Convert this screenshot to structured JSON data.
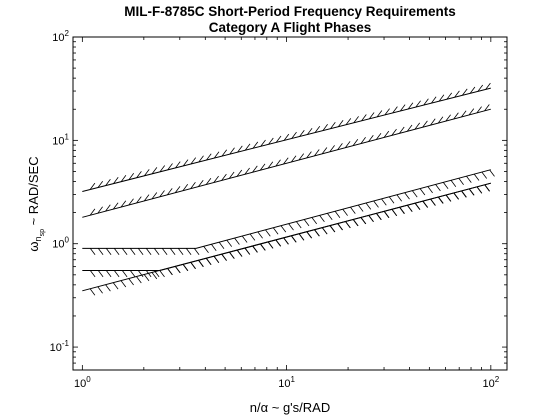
{
  "chart_data": {
    "type": "line",
    "title_lines": [
      "MIL-F-8785C Short-Period Frequency Requirements",
      "Category A Flight Phases"
    ],
    "xlabel": "n/α ~ g's/RAD",
    "ylabel": "ωn_sp ~ RAD/SEC",
    "ylabel_parts": {
      "omega": "ω",
      "sub_n": "n",
      "sub_sp": "sp",
      "rest": " ~ RAD/SEC"
    },
    "xscale": "log",
    "yscale": "log",
    "xlim": [
      0.9,
      120
    ],
    "ylim": [
      0.06,
      100
    ],
    "grid": false,
    "x_ticks": [
      {
        "base": "10",
        "exp": "0",
        "value": 1
      },
      {
        "base": "10",
        "exp": "1",
        "value": 10
      },
      {
        "base": "10",
        "exp": "2",
        "value": 100
      }
    ],
    "y_ticks": [
      {
        "base": "10",
        "exp": "-1",
        "value": 0.1
      },
      {
        "base": "10",
        "exp": "0",
        "value": 1
      },
      {
        "base": "10",
        "exp": "1",
        "value": 10
      },
      {
        "base": "10",
        "exp": "2",
        "value": 100
      }
    ],
    "series": [
      {
        "x": [
          1,
          100
        ],
        "y": [
          3.2,
          32
        ],
        "hatch": "above"
      },
      {
        "x": [
          1,
          100
        ],
        "y": [
          1.8,
          20
        ],
        "hatch": "above"
      },
      {
        "x": [
          1,
          3.6,
          100
        ],
        "y": [
          0.9,
          0.9,
          5.2
        ],
        "hatch": "below"
      },
      {
        "x": [
          1,
          2.4,
          100
        ],
        "y": [
          0.55,
          0.55,
          3.85
        ],
        "hatch": "below"
      },
      {
        "x": [
          1,
          100
        ],
        "y": [
          0.35,
          3.85
        ],
        "hatch": "below"
      }
    ]
  }
}
